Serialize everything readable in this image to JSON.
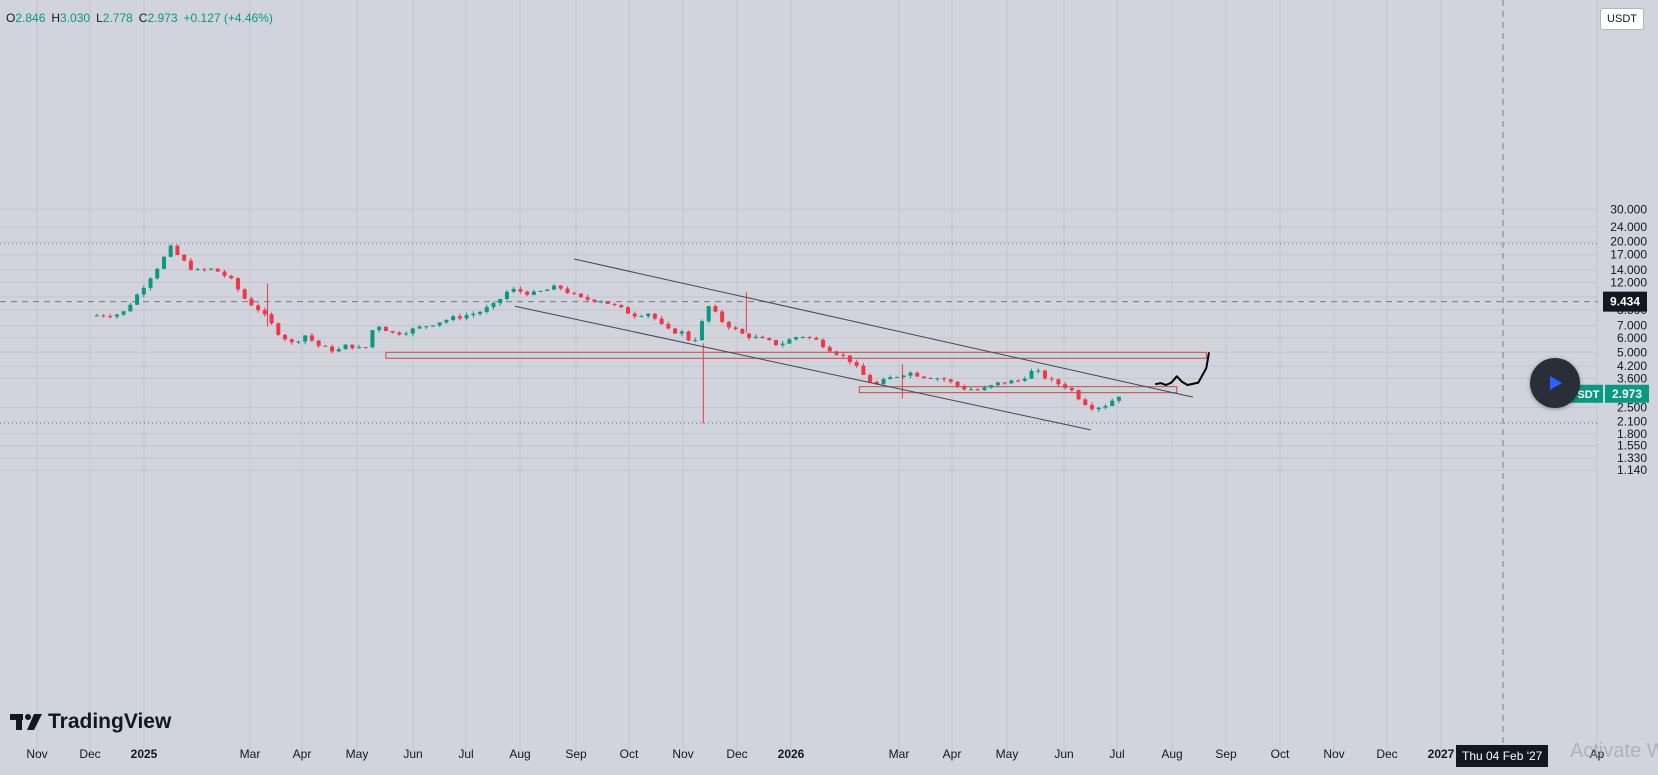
{
  "ohlc": {
    "o_label": "O",
    "o": "2.846",
    "h_label": "H",
    "h": "3.030",
    "l_label": "L",
    "l": "2.778",
    "c_label": "C",
    "c": "2.973",
    "change": "+0.127 (+4.46%)"
  },
  "quote_currency": "USDT",
  "branding": {
    "name": "TradingView"
  },
  "cursor_date": "Thu 04 Feb '27",
  "watermark": "Activate Windows",
  "colors": {
    "up": "#089981",
    "down": "#f23645",
    "background": "#d1d4dc",
    "zone_fill": "#b2dfdb",
    "zone_border": "#f23645",
    "trendline": "#434651",
    "drawing": "#000000"
  },
  "chart_data": {
    "type": "candlestick",
    "symbol": "UNIUSDT",
    "scale": "log",
    "y_ticks": [
      "30.000",
      "24.000",
      "20.000",
      "17.000",
      "14.000",
      "12.000",
      "10.000",
      "8.500",
      "7.000",
      "6.000",
      "5.000",
      "4.200",
      "3.600",
      "2.500",
      "2.100",
      "1.800",
      "1.550",
      "1.330",
      "1.140"
    ],
    "x_ticks": [
      "Nov",
      "Dec",
      "2025",
      "Mar",
      "Apr",
      "May",
      "Jun",
      "Jul",
      "Aug",
      "Sep",
      "Oct",
      "Nov",
      "Dec",
      "2026",
      "Mar",
      "Apr",
      "May",
      "Jun",
      "Jul",
      "Aug",
      "Sep",
      "Oct",
      "Nov",
      "Dec",
      "2027",
      "Ap"
    ],
    "ylim": [
      1.1,
      34
    ],
    "last_price": {
      "label": "UNIUSDT",
      "value": 2.973
    },
    "crosshair_price": 9.434,
    "price_path": [
      {
        "x": 0,
        "y": 7.9
      },
      {
        "x": 1.2,
        "y": 8.1
      },
      {
        "x": 1.8,
        "y": 10.5
      },
      {
        "x": 2.5,
        "y": 14.5
      },
      {
        "x": 3,
        "y": 18.5
      },
      {
        "x": 3.4,
        "y": 16.0
      },
      {
        "x": 3.9,
        "y": 13.8
      },
      {
        "x": 4.6,
        "y": 14.2
      },
      {
        "x": 5.2,
        "y": 12.6
      },
      {
        "x": 5.8,
        "y": 9.6
      },
      {
        "x": 6.3,
        "y": 8.5
      },
      {
        "x": 7,
        "y": 6.4
      },
      {
        "x": 7.5,
        "y": 5.6
      },
      {
        "x": 8,
        "y": 6.2
      },
      {
        "x": 8.6,
        "y": 5.3
      },
      {
        "x": 9.2,
        "y": 5.1
      },
      {
        "x": 9.6,
        "y": 5.5
      },
      {
        "x": 10.2,
        "y": 5.1
      },
      {
        "x": 10.6,
        "y": 7.2
      },
      {
        "x": 11.3,
        "y": 6.3
      },
      {
        "x": 12.1,
        "y": 6.7
      },
      {
        "x": 12.9,
        "y": 7.3
      },
      {
        "x": 13.7,
        "y": 7.8
      },
      {
        "x": 14.4,
        "y": 8.2
      },
      {
        "x": 15,
        "y": 9.0
      },
      {
        "x": 15.6,
        "y": 11.0
      },
      {
        "x": 16.5,
        "y": 10.4
      },
      {
        "x": 17.4,
        "y": 11.4
      },
      {
        "x": 18.2,
        "y": 9.8
      },
      {
        "x": 19,
        "y": 9.6
      },
      {
        "x": 19.6,
        "y": 8.8
      },
      {
        "x": 20.2,
        "y": 8.0
      },
      {
        "x": 20.8,
        "y": 8.2
      },
      {
        "x": 21.4,
        "y": 6.6
      },
      {
        "x": 22,
        "y": 6.4
      },
      {
        "x": 22.4,
        "y": 5.6
      },
      {
        "x": 22.7,
        "y": 6.7
      },
      {
        "x": 22.9,
        "y": 9.2
      },
      {
        "x": 23.5,
        "y": 7.4
      },
      {
        "x": 24.2,
        "y": 6.3
      },
      {
        "x": 24.9,
        "y": 5.9
      },
      {
        "x": 25.6,
        "y": 5.5
      },
      {
        "x": 26.4,
        "y": 6.2
      },
      {
        "x": 27,
        "y": 5.8
      },
      {
        "x": 27.6,
        "y": 5.1
      },
      {
        "x": 28.2,
        "y": 4.6
      },
      {
        "x": 28.7,
        "y": 3.8
      },
      {
        "x": 29.2,
        "y": 3.3
      },
      {
        "x": 29.7,
        "y": 3.6
      },
      {
        "x": 30.4,
        "y": 3.9
      },
      {
        "x": 31,
        "y": 3.7
      },
      {
        "x": 31.7,
        "y": 3.6
      },
      {
        "x": 32.4,
        "y": 3.2
      },
      {
        "x": 33.1,
        "y": 3.1
      },
      {
        "x": 33.8,
        "y": 3.4
      },
      {
        "x": 34.5,
        "y": 3.5
      },
      {
        "x": 35.1,
        "y": 4.0
      },
      {
        "x": 35.7,
        "y": 3.5
      },
      {
        "x": 36.4,
        "y": 3.2
      },
      {
        "x": 36.9,
        "y": 2.7
      },
      {
        "x": 37.3,
        "y": 2.5
      },
      {
        "x": 37.8,
        "y": 2.6
      },
      {
        "x": 38.3,
        "y": 2.97
      }
    ],
    "spikes": [
      {
        "x": 6.6,
        "high": 11.8,
        "low": 6.9
      },
      {
        "x": 22.8,
        "high": 5.6,
        "low": 2.05
      },
      {
        "x": 24.4,
        "high": 10.6,
        "low": 6.4
      },
      {
        "x": 30.2,
        "high": 4.3,
        "low": 2.8
      }
    ],
    "annotations": {
      "upper_trendline": [
        {
          "x": 18,
          "y": 16.1
        },
        {
          "x": 41,
          "y": 2.85
        }
      ],
      "lower_trendline": [
        {
          "x": 15.8,
          "y": 8.9
        },
        {
          "x": 37.2,
          "y": 1.89
        }
      ],
      "zone_high": {
        "x0": 11,
        "x1": 41.5,
        "y_low": 4.8,
        "y_high": 5.0
      },
      "zone_low": {
        "x0": 28.6,
        "x1": 40.4,
        "y_low": 3.13,
        "y_high": 3.25
      },
      "forecast_path": [
        {
          "x": 39.6,
          "y": 3.35
        },
        {
          "x": 39.8,
          "y": 3.4
        },
        {
          "x": 40.0,
          "y": 3.32
        },
        {
          "x": 40.2,
          "y": 3.42
        },
        {
          "x": 40.4,
          "y": 3.7
        },
        {
          "x": 40.6,
          "y": 3.45
        },
        {
          "x": 40.8,
          "y": 3.32
        },
        {
          "x": 41.2,
          "y": 3.42
        },
        {
          "x": 41.5,
          "y": 4.1
        },
        {
          "x": 41.6,
          "y": 5.0
        }
      ]
    },
    "grid": true,
    "legend": "none"
  }
}
